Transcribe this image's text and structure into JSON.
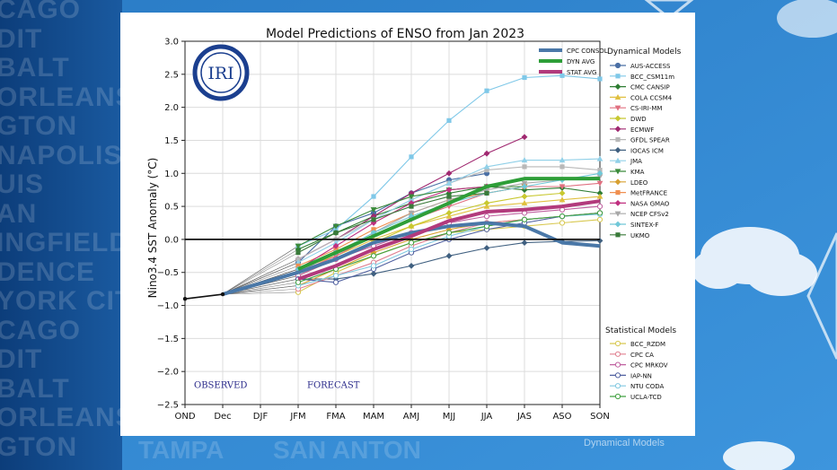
{
  "background": {
    "left_words": [
      "CAGO",
      "DIT",
      "BALT",
      "ORLEANS",
      "GTON",
      "NAPOLIS",
      "UIS",
      "AN",
      "INGFIELD",
      "DENCE",
      "YORK CITY",
      "CAGO",
      "DIT",
      "BALT",
      "ORLEANS",
      "GTON"
    ],
    "bottom_words": [
      "TAMPA",
      "SAN ANTON"
    ],
    "watermark": "Dynamical Models"
  },
  "chart_data": {
    "type": "line",
    "title": "Model Predictions of ENSO from Jan 2023",
    "xlabel": "",
    "ylabel": "Nino3.4 SST Anomaly (°C)",
    "categories": [
      "OND",
      "Dec",
      "DJF",
      "JFM",
      "FMA",
      "MAM",
      "AMJ",
      "MJJ",
      "JJA",
      "JAS",
      "ASO",
      "SON"
    ],
    "ylim": [
      -2.5,
      3.0
    ],
    "yticks": [
      "−2.5",
      "−2.0",
      "−1.5",
      "−1.0",
      "−0.5",
      "0.0",
      "0.5",
      "1.0",
      "1.5",
      "2.0",
      "2.5",
      "3.0"
    ],
    "ytick_values": [
      -2.5,
      -2.0,
      -1.5,
      -1.0,
      -0.5,
      0.0,
      0.5,
      1.0,
      1.5,
      2.0,
      2.5,
      3.0
    ],
    "grid": true,
    "logo": "IRI",
    "annotations": [
      {
        "text": "OBSERVED",
        "x": "OND"
      },
      {
        "text": "FORECAST",
        "x": "JFM"
      }
    ],
    "observed": {
      "x": [
        "OND",
        "Dec"
      ],
      "values": [
        -0.9,
        -0.83
      ]
    },
    "highlight_legend": [
      {
        "name": "CPC CONSOL",
        "color": "#4a78a8"
      },
      {
        "name": "DYN AVG",
        "color": "#2e9e38"
      },
      {
        "name": "STAT AVG",
        "color": "#b23a7c"
      }
    ],
    "highlight_series": [
      {
        "name": "CPC CONSOL",
        "color": "#4a78a8",
        "values": [
          null,
          -0.83,
          null,
          -0.5,
          -0.3,
          -0.05,
          0.1,
          0.2,
          0.25,
          0.2,
          -0.05,
          -0.1
        ]
      },
      {
        "name": "DYN AVG",
        "color": "#2e9e38",
        "values": [
          null,
          null,
          null,
          -0.45,
          -0.2,
          0.05,
          0.3,
          0.55,
          0.8,
          0.92,
          0.92,
          0.92
        ]
      },
      {
        "name": "STAT AVG",
        "color": "#b23a7c",
        "values": [
          null,
          null,
          null,
          -0.6,
          -0.4,
          -0.15,
          0.05,
          0.28,
          0.42,
          0.45,
          0.5,
          0.58
        ]
      }
    ],
    "dynamical_legend_title": "Dynamical Models",
    "dynamical_series": [
      {
        "name": "AUS-ACCESS",
        "color": "#4a6fa5",
        "values": [
          null,
          null,
          null,
          -0.35,
          0.2,
          0.4,
          0.7,
          0.9,
          1.0,
          null,
          null,
          null
        ]
      },
      {
        "name": "BCC_CSM11m",
        "color": "#7fc8e8",
        "values": [
          null,
          null,
          null,
          -0.1,
          0.15,
          0.65,
          1.25,
          1.8,
          2.25,
          2.45,
          2.48,
          2.43
        ]
      },
      {
        "name": "CMC CANSIP",
        "color": "#2e7d32",
        "values": [
          null,
          null,
          null,
          -0.15,
          0.1,
          0.35,
          0.55,
          0.7,
          0.8,
          0.75,
          0.78,
          0.7
        ]
      },
      {
        "name": "COLA CCSM4",
        "color": "#e0c040",
        "values": [
          null,
          null,
          null,
          -0.45,
          -0.25,
          0.0,
          0.2,
          0.35,
          0.5,
          0.55,
          0.6,
          0.65
        ]
      },
      {
        "name": "CS-IRI-MM",
        "color": "#e07080",
        "values": [
          null,
          null,
          null,
          -0.5,
          -0.25,
          0.05,
          0.3,
          0.5,
          0.7,
          0.8,
          0.8,
          0.85
        ]
      },
      {
        "name": "DWD",
        "color": "#c8c830",
        "values": [
          null,
          null,
          null,
          -0.55,
          -0.3,
          -0.05,
          0.2,
          0.4,
          0.55,
          0.65,
          0.7,
          null
        ]
      },
      {
        "name": "ECMWF",
        "color": "#a02870",
        "values": [
          null,
          null,
          null,
          -0.3,
          0.0,
          0.35,
          0.7,
          1.0,
          1.3,
          1.55,
          null,
          null
        ]
      },
      {
        "name": "GFDL SPEAR",
        "color": "#b8b8b8",
        "values": [
          null,
          null,
          null,
          -0.3,
          0.0,
          0.3,
          0.6,
          0.85,
          1.05,
          1.1,
          1.1,
          1.05
        ]
      },
      {
        "name": "IOCAS ICM",
        "color": "#406080",
        "values": [
          null,
          null,
          null,
          -0.6,
          -0.6,
          -0.52,
          -0.4,
          -0.25,
          -0.13,
          -0.05,
          -0.03,
          -0.02
        ]
      },
      {
        "name": "JMA",
        "color": "#90d0e8",
        "values": [
          null,
          null,
          null,
          -0.35,
          -0.05,
          0.3,
          0.6,
          0.85,
          1.1,
          1.2,
          1.2,
          1.22
        ]
      },
      {
        "name": "KMA",
        "color": "#3a8a3a",
        "values": [
          null,
          null,
          null,
          -0.1,
          0.2,
          0.45,
          0.65,
          0.75,
          0.8,
          0.8,
          null,
          null
        ]
      },
      {
        "name": "LDEO",
        "color": "#d8a030",
        "values": [
          null,
          null,
          null,
          -0.7,
          -0.45,
          -0.2,
          0.0,
          0.15,
          0.25,
          0.3,
          0.35,
          0.4
        ]
      },
      {
        "name": "MetFRANCE",
        "color": "#f09050",
        "values": [
          null,
          null,
          null,
          -0.4,
          -0.15,
          0.15,
          0.4,
          0.6,
          0.7,
          0.8,
          null,
          null
        ]
      },
      {
        "name": "NASA GMAO",
        "color": "#c03080",
        "values": [
          null,
          null,
          null,
          -0.45,
          -0.1,
          0.25,
          0.55,
          0.75,
          0.8,
          null,
          null,
          null
        ]
      },
      {
        "name": "NCEP CFSv2",
        "color": "#a8a8a8",
        "values": [
          null,
          null,
          null,
          -0.5,
          -0.2,
          0.1,
          0.4,
          0.6,
          0.75,
          0.85,
          0.9,
          0.95
        ]
      },
      {
        "name": "SINTEX-F",
        "color": "#70c8d8",
        "values": [
          null,
          null,
          null,
          -0.45,
          -0.2,
          0.1,
          0.35,
          0.55,
          0.7,
          0.8,
          0.9,
          1.0
        ]
      },
      {
        "name": "UKMO",
        "color": "#3a7a3a",
        "values": [
          null,
          null,
          null,
          -0.2,
          0.1,
          0.3,
          0.5,
          0.65,
          0.7,
          null,
          null,
          null
        ]
      }
    ],
    "statistical_legend_title": "Statistical Models",
    "statistical_series": [
      {
        "name": "BCC_RZDM",
        "color": "#d8c850",
        "values": [
          null,
          null,
          null,
          -0.8,
          -0.5,
          -0.25,
          -0.05,
          0.1,
          0.15,
          0.2,
          0.25,
          0.3
        ]
      },
      {
        "name": "CPC CA",
        "color": "#e08090",
        "values": [
          null,
          null,
          null,
          -0.75,
          -0.55,
          -0.35,
          -0.1,
          0.1,
          0.25,
          0.3,
          0.35,
          0.4
        ]
      },
      {
        "name": "CPC MRKOV",
        "color": "#c060a0",
        "values": [
          null,
          null,
          null,
          -0.55,
          -0.3,
          -0.1,
          0.1,
          0.25,
          0.35,
          0.4,
          0.45,
          0.5
        ]
      },
      {
        "name": "IAP-NN",
        "color": "#5060a0",
        "values": [
          null,
          null,
          null,
          -0.6,
          -0.65,
          -0.45,
          -0.2,
          0.0,
          0.15,
          0.25,
          0.35,
          0.4
        ]
      },
      {
        "name": "NTU CODA",
        "color": "#80c8e0",
        "values": [
          null,
          null,
          null,
          -0.7,
          -0.55,
          -0.4,
          -0.15,
          0.05,
          0.2,
          0.3,
          0.35,
          0.38
        ]
      },
      {
        "name": "UCLA-TCD",
        "color": "#40a040",
        "values": [
          null,
          null,
          null,
          -0.65,
          -0.45,
          -0.25,
          -0.05,
          0.1,
          0.2,
          0.3,
          0.35,
          0.4
        ]
      }
    ]
  }
}
